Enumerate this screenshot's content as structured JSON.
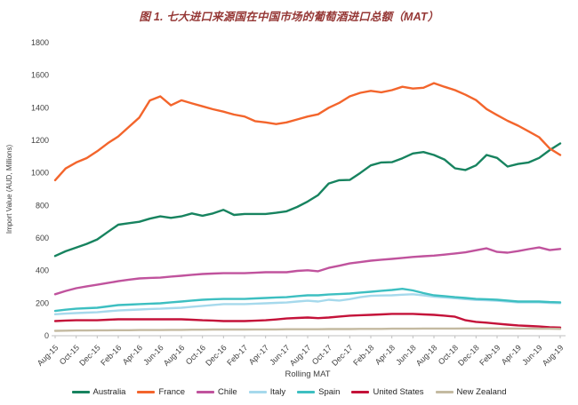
{
  "title": "图 1. 七大进口来源国在中国市场的葡萄酒进口总额（MAT）",
  "colors": {
    "title_text": "#953735",
    "axis_text": "#404040",
    "axis_line": "#BFBFBF",
    "background": "#FFFFFF"
  },
  "chart_data": {
    "type": "line",
    "title": "图 1. 七大进口来源国在中国市场的葡萄酒进口总额（MAT）",
    "xlabel": "Rolling MAT",
    "ylabel": "Import Value (AUD, Millions)",
    "ylim": [
      0,
      1800
    ],
    "ytick_step": 200,
    "ytick_labels": [
      "0",
      "200",
      "400",
      "600",
      "800",
      "1000",
      "1200",
      "1400",
      "1600",
      "1800"
    ],
    "grid": false,
    "legend_position": "bottom",
    "points_per_xtick": 2,
    "xtick_labels": [
      "Aug-15",
      "Oct-15",
      "Dec-15",
      "Feb-16",
      "Apr-16",
      "Jun-16",
      "Aug-16",
      "Oct-16",
      "Dec-16",
      "Feb-17",
      "Apr-17",
      "Jun-17",
      "Aug-17",
      "Oct-17",
      "Dec-17",
      "Feb-18",
      "Apr-18",
      "Jun-18",
      "Aug-18",
      "Oct-18",
      "Dec-18",
      "Feb-19",
      "Apr-19",
      "Jun-19",
      "Aug-19"
    ],
    "series": [
      {
        "name": "Australia",
        "color": "#17835F",
        "values": [
          490,
          519,
          541,
          564,
          591,
          637,
          682,
          691,
          700,
          719,
          733,
          724,
          733,
          751,
          737,
          751,
          773,
          742,
          748,
          748,
          748,
          755,
          764,
          791,
          824,
          864,
          935,
          955,
          957,
          1000,
          1046,
          1064,
          1066,
          1090,
          1119,
          1128,
          1110,
          1082,
          1028,
          1018,
          1046,
          1110,
          1092,
          1039,
          1055,
          1064,
          1092,
          1140,
          1181
        ]
      },
      {
        "name": "France",
        "color": "#F3652C",
        "values": [
          955,
          1027,
          1064,
          1091,
          1133,
          1182,
          1224,
          1282,
          1340,
          1445,
          1470,
          1415,
          1446,
          1427,
          1409,
          1391,
          1376,
          1358,
          1346,
          1318,
          1310,
          1300,
          1310,
          1328,
          1346,
          1360,
          1400,
          1430,
          1470,
          1492,
          1504,
          1495,
          1508,
          1529,
          1518,
          1523,
          1551,
          1529,
          1508,
          1480,
          1447,
          1392,
          1355,
          1320,
          1290,
          1255,
          1219,
          1150,
          1110
        ]
      },
      {
        "name": "Chile",
        "color": "#C0539D",
        "values": [
          255,
          275,
          292,
          303,
          313,
          324,
          335,
          344,
          352,
          355,
          357,
          363,
          368,
          374,
          379,
          382,
          384,
          384,
          384,
          387,
          390,
          390,
          390,
          398,
          402,
          396,
          417,
          430,
          444,
          452,
          461,
          467,
          472,
          478,
          484,
          488,
          492,
          498,
          505,
          512,
          525,
          537,
          515,
          510,
          520,
          532,
          542,
          526,
          533
        ]
      },
      {
        "name": "Italy",
        "color": "#A6D9EC",
        "values": [
          132,
          136,
          139,
          142,
          144,
          150,
          155,
          158,
          161,
          164,
          166,
          169,
          172,
          178,
          183,
          189,
          194,
          194,
          194,
          197,
          199,
          202,
          204,
          210,
          215,
          210,
          221,
          216,
          225,
          237,
          245,
          247,
          248,
          252,
          255,
          248,
          240,
          235,
          230,
          225,
          220,
          218,
          215,
          210,
          205,
          205,
          205,
          202,
          200
        ]
      },
      {
        "name": "Spain",
        "color": "#3DBFC1",
        "values": [
          152,
          160,
          166,
          169,
          172,
          180,
          188,
          191,
          194,
          197,
          199,
          205,
          210,
          216,
          221,
          224,
          226,
          226,
          226,
          229,
          232,
          235,
          237,
          243,
          248,
          248,
          253,
          256,
          259,
          265,
          270,
          276,
          281,
          288,
          278,
          262,
          248,
          243,
          237,
          232,
          226,
          224,
          221,
          216,
          210,
          210,
          210,
          207,
          205
        ]
      },
      {
        "name": "United States",
        "color": "#C41239",
        "values": [
          90,
          93,
          95,
          95,
          95,
          98,
          101,
          101,
          101,
          101,
          101,
          101,
          101,
          98,
          95,
          93,
          90,
          90,
          90,
          92,
          95,
          100,
          106,
          109,
          112,
          108,
          112,
          118,
          123,
          126,
          128,
          131,
          134,
          134,
          134,
          131,
          128,
          123,
          117,
          95,
          85,
          80,
          74,
          68,
          63,
          60,
          57,
          52,
          50
        ]
      },
      {
        "name": "New Zealand",
        "color": "#C4BAA1",
        "values": [
          30,
          31,
          32,
          32,
          33,
          33,
          34,
          34,
          35,
          35,
          35,
          36,
          36,
          37,
          37,
          38,
          38,
          38,
          38,
          39,
          39,
          39,
          40,
          40,
          40,
          40,
          41,
          41,
          41,
          42,
          42,
          42,
          43,
          43,
          43,
          44,
          44,
          44,
          44,
          45,
          45,
          45,
          45,
          45,
          44,
          44,
          43,
          43,
          42
        ]
      }
    ]
  }
}
